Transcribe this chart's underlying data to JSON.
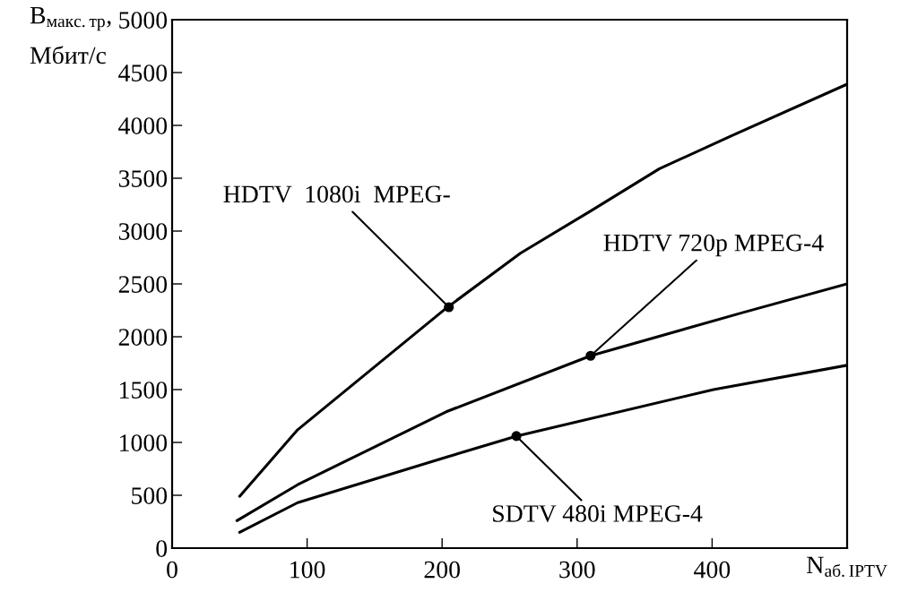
{
  "chart_data": {
    "type": "line",
    "xlabel": "N$_{аб.IPTV}$",
    "ylabel": "B$_{макс.тр}$,\nМбит/с",
    "xlim": [
      0,
      500
    ],
    "xticks": [
      0,
      100,
      200,
      300,
      400
    ],
    "ylim": [
      0,
      5000
    ],
    "yticks": [
      0,
      500,
      1000,
      1500,
      2000,
      2500,
      3000,
      3500,
      4000,
      4500,
      5000
    ],
    "grid": false,
    "legend": false,
    "marker": "none",
    "line_style": "solid",
    "series": [
      {
        "color": "#000000",
        "x": [
          50,
          93,
          203,
          258,
          310,
          361,
          414,
          500
        ],
        "values": [
          490,
          1120,
          2270,
          2790,
          3190,
          3590,
          3900,
          4390
        ]
      },
      {
        "color": "#000000",
        "x": [
          48,
          93,
          203,
          310,
          423,
          500
        ],
        "values": [
          260,
          600,
          1290,
          1820,
          2230,
          2500
        ]
      },
      {
        "color": "#000000",
        "x": [
          50,
          93,
          203,
          255,
          401,
          500
        ],
        "values": [
          150,
          430,
          860,
          1060,
          1500,
          1730
        ]
      }
    ],
    "annotations": [
      {
        "text": "HDTV  1080i  MPEG-",
        "x": 205,
        "y": 2280
      },
      {
        "text": "HDTV 720p MPEG-4",
        "x": 310,
        "y": 1820
      },
      {
        "text": "SDTV 480i MPEG-4",
        "x": 255,
        "y": 1060
      }
    ]
  }
}
